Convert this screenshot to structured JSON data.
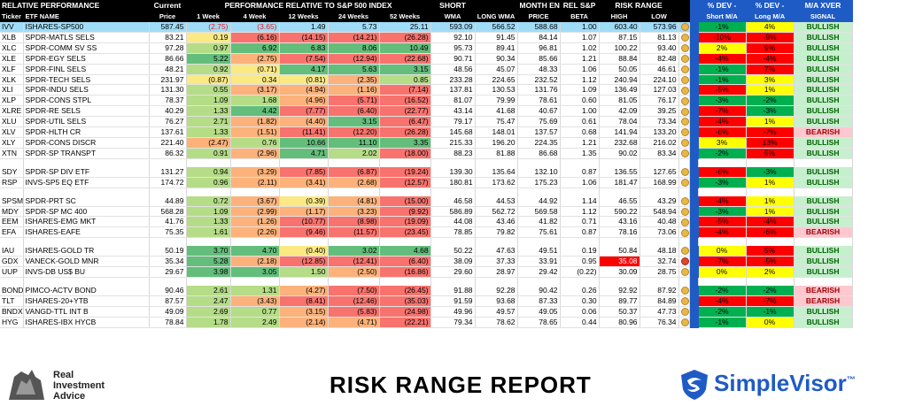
{
  "header": {
    "section_title": "RELATIVE PERFORMANCE",
    "current": "Current",
    "perf_title": "PERFORMANCE RELATIVE TO S&P 500 INDEX",
    "short": "SHORT",
    "month_end": "MONTH END",
    "rel_sp": "REL S&P",
    "risk_range": "RISK RANGE",
    "dev_short_1": "% DEV -",
    "dev_long_1": "% DEV -",
    "maxver_1": "M/A XVER",
    "ticker": "Ticker",
    "etf_name": "ETF NAME",
    "price": "Price",
    "w1": "1 Week",
    "w4": "4 Week",
    "w12": "12 Weeks",
    "w24": "24 Weeks",
    "w52": "52 Weeks",
    "wma": "WMA",
    "long_wma": "LONG WMA",
    "price2": "PRICE",
    "beta": "BETA",
    "high": "HIGH",
    "low": "LOW",
    "dev_short_2": "Short M/A",
    "dev_long_2": "Long M/A",
    "signal": "SIGNAL"
  },
  "colors": {
    "green_dark": "#63be7b",
    "green_light": "#b5dc87",
    "yellow": "#fbe983",
    "orange": "#fcb27a",
    "red_light": "#f8736d",
    "red": "#ff0000",
    "dev_yellow": "#ffff00",
    "dev_green": "#00b050",
    "bullish_bg": "#c6efce",
    "bearish_bg": "#ffc7ce"
  },
  "groups": [
    [
      {
        "ticker": "IVV",
        "name": "ISHARES-SP500",
        "price": "587.45",
        "w1": "(2.75)",
        "w4": "(3.65)",
        "w12": "1.49",
        "w24": "5.73",
        "w52": "25.11",
        "wma": "593.09",
        "lwma": "566.52",
        "mep": "588.68",
        "beta": "1.00",
        "high": "603.40",
        "low": "573.96",
        "dot": "y",
        "dev_s": "-1%",
        "dev_l": "4%",
        "signal": "BULLISH",
        "hl": true
      },
      {
        "ticker": "XLB",
        "name": "SPDR-MATLS SELS",
        "price": "83.21",
        "w1": "0.19",
        "w4": "(6.16)",
        "w12": "(14.15)",
        "w24": "(14.21)",
        "w52": "(26.28)",
        "wma": "92.10",
        "lwma": "91.45",
        "mep": "84.14",
        "beta": "1.07",
        "high": "87.15",
        "low": "81.13",
        "dot": "y",
        "dev_s": "-10%",
        "dev_l": "-9%",
        "signal": "BULLISH"
      },
      {
        "ticker": "XLC",
        "name": "SPDR-COMM SV SS",
        "price": "97.28",
        "w1": "0.97",
        "w4": "6.92",
        "w12": "6.83",
        "w24": "8.06",
        "w52": "10.49",
        "wma": "95.73",
        "lwma": "89.41",
        "mep": "96.81",
        "beta": "1.02",
        "high": "100.22",
        "low": "93.40",
        "dot": "y",
        "dev_s": "2%",
        "dev_l": "9%",
        "signal": "BULLISH"
      },
      {
        "ticker": "XLE",
        "name": "SPDR-EGY SELS",
        "price": "86.66",
        "w1": "5.22",
        "w4": "(2.75)",
        "w12": "(7.54)",
        "w24": "(12.94)",
        "w52": "(22.68)",
        "wma": "90.71",
        "lwma": "90.34",
        "mep": "85.66",
        "beta": "1.21",
        "high": "88.84",
        "low": "82.48",
        "dot": "y",
        "dev_s": "-4%",
        "dev_l": "-4%",
        "signal": "BULLISH"
      },
      {
        "ticker": "XLF",
        "name": "SPDR-FINL SELS",
        "price": "48.21",
        "w1": "0.92",
        "w4": "(0.71)",
        "w12": "4.17",
        "w24": "5.63",
        "w52": "3.15",
        "wma": "48.56",
        "lwma": "45.07",
        "mep": "48.33",
        "beta": "1.06",
        "high": "50.05",
        "low": "46.61",
        "dot": "y",
        "dev_s": "-1%",
        "dev_l": "7%",
        "signal": "BULLISH"
      },
      {
        "ticker": "XLK",
        "name": "SPDR-TECH SELS",
        "price": "231.97",
        "w1": "(0.87)",
        "w4": "0.34",
        "w12": "(0.81)",
        "w24": "(2.35)",
        "w52": "0.85",
        "wma": "233.28",
        "lwma": "224.65",
        "mep": "232.52",
        "beta": "1.12",
        "high": "240.94",
        "low": "224.10",
        "dot": "y",
        "dev_s": "-1%",
        "dev_l": "3%",
        "signal": "BULLISH"
      },
      {
        "ticker": "XLI",
        "name": "SPDR-INDU SELS",
        "price": "131.30",
        "w1": "0.55",
        "w4": "(3.17)",
        "w12": "(4.94)",
        "w24": "(1.16)",
        "w52": "(7.14)",
        "wma": "137.81",
        "lwma": "130.53",
        "mep": "131.76",
        "beta": "1.09",
        "high": "136.49",
        "low": "127.03",
        "dot": "y",
        "dev_s": "-5%",
        "dev_l": "1%",
        "signal": "BULLISH"
      },
      {
        "ticker": "XLP",
        "name": "SPDR-CONS STPL",
        "price": "78.37",
        "w1": "1.09",
        "w4": "1.68",
        "w12": "(4.96)",
        "w24": "(5.71)",
        "w52": "(16.52)",
        "wma": "81.07",
        "lwma": "79.99",
        "mep": "78.61",
        "beta": "0.60",
        "high": "81.05",
        "low": "76.17",
        "dot": "y",
        "dev_s": "-3%",
        "dev_l": "-2%",
        "signal": "BULLISH"
      },
      {
        "ticker": "XLRE",
        "name": "SPDR-RE SELS",
        "price": "40.29",
        "w1": "1.33",
        "w4": "4.42",
        "w12": "(7.77)",
        "w24": "(6.40)",
        "w52": "(22.77)",
        "wma": "43.14",
        "lwma": "41.68",
        "mep": "40.67",
        "beta": "1.00",
        "high": "42.09",
        "low": "39.25",
        "dot": "y",
        "dev_s": "-7%",
        "dev_l": "-3%",
        "signal": "BULLISH"
      },
      {
        "ticker": "XLU",
        "name": "SPDR-UTIL SELS",
        "price": "76.27",
        "w1": "2.71",
        "w4": "(1.82)",
        "w12": "(4.40)",
        "w24": "3.15",
        "w52": "(6.47)",
        "wma": "79.17",
        "lwma": "75.47",
        "mep": "75.69",
        "beta": "0.61",
        "high": "78.04",
        "low": "73.34",
        "dot": "y",
        "dev_s": "-4%",
        "dev_l": "1%",
        "signal": "BULLISH"
      },
      {
        "ticker": "XLV",
        "name": "SPDR-HLTH CR",
        "price": "137.61",
        "w1": "1.33",
        "w4": "(1.51)",
        "w12": "(11.41)",
        "w24": "(12.20)",
        "w52": "(26.28)",
        "wma": "145.68",
        "lwma": "148.01",
        "mep": "137.57",
        "beta": "0.68",
        "high": "141.94",
        "low": "133.20",
        "dot": "y",
        "dev_s": "-6%",
        "dev_l": "-7%",
        "signal": "BEARISH"
      },
      {
        "ticker": "XLY",
        "name": "SPDR-CONS DISCR",
        "price": "221.40",
        "w1": "(2.47)",
        "w4": "0.76",
        "w12": "10.66",
        "w24": "11.10",
        "w52": "3.35",
        "wma": "215.33",
        "lwma": "196.20",
        "mep": "224.35",
        "beta": "1.21",
        "high": "232.68",
        "low": "216.02",
        "dot": "y",
        "dev_s": "3%",
        "dev_l": "13%",
        "signal": "BULLISH"
      },
      {
        "ticker": "XTN",
        "name": "SPDR-SP TRANSPT",
        "price": "86.32",
        "w1": "0.91",
        "w4": "(2.96)",
        "w12": "4.71",
        "w24": "2.02",
        "w52": "(18.00)",
        "wma": "88.23",
        "lwma": "81.88",
        "mep": "86.68",
        "beta": "1.35",
        "high": "90.02",
        "low": "83.34",
        "dot": "y",
        "dev_s": "-2%",
        "dev_l": "5%",
        "signal": "BULLISH"
      }
    ],
    [
      {
        "ticker": "SDY",
        "name": "SPDR-SP DIV ETF",
        "price": "131.27",
        "w1": "0.94",
        "w4": "(3.29)",
        "w12": "(7.85)",
        "w24": "(6.87)",
        "w52": "(19.24)",
        "wma": "139.30",
        "lwma": "135.64",
        "mep": "132.10",
        "beta": "0.87",
        "high": "136.55",
        "low": "127.65",
        "dot": "y",
        "dev_s": "-6%",
        "dev_l": "-3%",
        "signal": "BULLISH"
      },
      {
        "ticker": "RSP",
        "name": "INVS-SP5 EQ ETF",
        "price": "174.72",
        "w1": "0.96",
        "w4": "(2.11)",
        "w12": "(3.41)",
        "w24": "(2.68)",
        "w52": "(12.57)",
        "wma": "180.81",
        "lwma": "173.62",
        "mep": "175.23",
        "beta": "1.06",
        "high": "181.47",
        "low": "168.99",
        "dot": "y",
        "dev_s": "-3%",
        "dev_l": "1%",
        "signal": "BULLISH"
      }
    ],
    [
      {
        "ticker": "SPSM",
        "name": "SPDR-PRT SC",
        "price": "44.89",
        "w1": "0.72",
        "w4": "(3.67)",
        "w12": "(0.39)",
        "w24": "(4.81)",
        "w52": "(15.00)",
        "wma": "46.58",
        "lwma": "44.53",
        "mep": "44.92",
        "beta": "1.14",
        "high": "46.55",
        "low": "43.29",
        "dot": "y",
        "dev_s": "-4%",
        "dev_l": "1%",
        "signal": "BULLISH"
      },
      {
        "ticker": "MDY",
        "name": "SPDR-SP MC 400",
        "price": "568.28",
        "w1": "1.09",
        "w4": "(2.99)",
        "w12": "(1.17)",
        "w24": "(3.23)",
        "w52": "(9.92)",
        "wma": "586.89",
        "lwma": "562.72",
        "mep": "569.58",
        "beta": "1.12",
        "high": "590.22",
        "low": "548.94",
        "dot": "y",
        "dev_s": "-3%",
        "dev_l": "1%",
        "signal": "BULLISH"
      },
      {
        "ticker": "EEM",
        "name": "ISHARES-EMG MKT",
        "price": "41.76",
        "w1": "1.33",
        "w4": "(1.26)",
        "w12": "(10.77)",
        "w24": "(8.98)",
        "w52": "(19.09)",
        "wma": "44.08",
        "lwma": "43.46",
        "mep": "41.82",
        "beta": "0.71",
        "high": "43.16",
        "low": "40.48",
        "dot": "y",
        "dev_s": "-5%",
        "dev_l": "-4%",
        "signal": "BULLISH"
      },
      {
        "ticker": "EFA",
        "name": "ISHARES-EAFE",
        "price": "75.35",
        "w1": "1.61",
        "w4": "(2.26)",
        "w12": "(9.46)",
        "w24": "(11.57)",
        "w52": "(23.45)",
        "wma": "78.85",
        "lwma": "79.82",
        "mep": "75.61",
        "beta": "0.87",
        "high": "78.16",
        "low": "73.06",
        "dot": "y",
        "dev_s": "-4%",
        "dev_l": "-6%",
        "signal": "BEARISH"
      }
    ],
    [
      {
        "ticker": "IAU",
        "name": "ISHARES-GOLD TR",
        "price": "50.19",
        "w1": "3.70",
        "w4": "4.70",
        "w12": "(0.40)",
        "w24": "3.02",
        "w52": "4.68",
        "wma": "50.22",
        "lwma": "47.63",
        "mep": "49.51",
        "beta": "0.19",
        "high": "50.84",
        "low": "48.18",
        "dot": "y",
        "dev_s": "0%",
        "dev_l": "5%",
        "signal": "BULLISH"
      },
      {
        "ticker": "GDX",
        "name": "VANECK-GOLD MNR",
        "price": "35.34",
        "w1": "5.28",
        "w4": "(2.18)",
        "w12": "(12.85)",
        "w24": "(12.41)",
        "w52": "(6.40)",
        "wma": "38.09",
        "lwma": "37.33",
        "mep": "33.91",
        "beta": "0.95",
        "high": "35.08",
        "low": "32.74",
        "dot": "x",
        "dev_s": "-7%",
        "dev_l": "-5%",
        "signal": "BULLISH",
        "high_red": true
      },
      {
        "ticker": "UUP",
        "name": "INVS-DB US$ BU",
        "price": "29.67",
        "w1": "3.98",
        "w4": "3.05",
        "w12": "1.50",
        "w24": "(2.50)",
        "w52": "(16.86)",
        "wma": "29.60",
        "lwma": "28.97",
        "mep": "29.42",
        "beta": "(0.22)",
        "high": "30.09",
        "low": "28.75",
        "dot": "y",
        "dev_s": "0%",
        "dev_l": "2%",
        "signal": "BULLISH"
      }
    ],
    [
      {
        "ticker": "BOND",
        "name": "PIMCO-ACTV BOND",
        "price": "90.46",
        "w1": "2.61",
        "w4": "1.31",
        "w12": "(4.27)",
        "w24": "(7.50)",
        "w52": "(26.45)",
        "wma": "91.88",
        "lwma": "92.28",
        "mep": "90.42",
        "beta": "0.26",
        "high": "92.92",
        "low": "87.92",
        "dot": "y",
        "dev_s": "-2%",
        "dev_l": "-2%",
        "signal": "BEARISH"
      },
      {
        "ticker": "TLT",
        "name": "ISHARES-20+YTB",
        "price": "87.57",
        "w1": "2.47",
        "w4": "(3.43)",
        "w12": "(8.41)",
        "w24": "(12.46)",
        "w52": "(35.03)",
        "wma": "91.59",
        "lwma": "93.68",
        "mep": "87.33",
        "beta": "0.30",
        "high": "89.77",
        "low": "84.89",
        "dot": "y",
        "dev_s": "-4%",
        "dev_l": "-7%",
        "signal": "BEARISH"
      },
      {
        "ticker": "BNDX",
        "name": "VANGD-TTL INT B",
        "price": "49.09",
        "w1": "2.69",
        "w4": "0.77",
        "w12": "(3.15)",
        "w24": "(5.83)",
        "w52": "(24.98)",
        "wma": "49.96",
        "lwma": "49.57",
        "mep": "49.05",
        "beta": "0.06",
        "high": "50.37",
        "low": "47.73",
        "dot": "y",
        "dev_s": "-2%",
        "dev_l": "-1%",
        "signal": "BULLISH"
      },
      {
        "ticker": "HYG",
        "name": "ISHARES-IBX HYCB",
        "price": "78.84",
        "w1": "1.78",
        "w4": "2.49",
        "w12": "(2.14)",
        "w24": "(4.71)",
        "w52": "(22.21)",
        "wma": "79.34",
        "lwma": "78.62",
        "mep": "78.65",
        "beta": "0.44",
        "high": "80.96",
        "low": "76.34",
        "dot": "y",
        "dev_s": "-1%",
        "dev_l": "0%",
        "signal": "BULLISH"
      }
    ]
  ],
  "footer": {
    "ria_line1": "Real",
    "ria_line2": "Investment",
    "ria_line3": "Advice",
    "report_title": "RISK RANGE REPORT",
    "simplevisor": "SimpleVisor",
    "tm": "™"
  }
}
